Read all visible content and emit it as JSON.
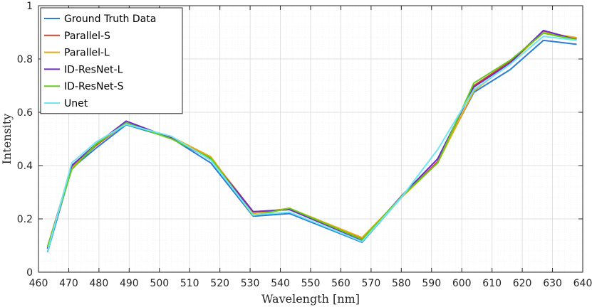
{
  "chart_data": {
    "type": "line",
    "title": "",
    "xlabel": "Wavelength [nm]",
    "ylabel": "Intensity",
    "xlim": [
      460,
      640
    ],
    "ylim": [
      0,
      1
    ],
    "xticks": [
      460,
      470,
      480,
      490,
      500,
      510,
      520,
      530,
      540,
      550,
      560,
      570,
      580,
      590,
      600,
      610,
      620,
      630,
      640
    ],
    "yticks": [
      0,
      0.2,
      0.4,
      0.6,
      0.8,
      1
    ],
    "grid": "on (major and minor)",
    "legend_position": "top-left",
    "x": [
      463,
      471,
      479,
      489,
      504,
      517,
      531,
      543,
      567,
      580,
      592,
      604,
      616,
      627,
      638
    ],
    "series": [
      {
        "name": "Ground Truth Data",
        "color": "#2b7bd8",
        "values": [
          0.075,
          0.39,
          0.465,
          0.553,
          0.503,
          0.41,
          0.21,
          0.22,
          0.112,
          0.28,
          0.415,
          0.675,
          0.76,
          0.87,
          0.855
        ]
      },
      {
        "name": "Parallel-S",
        "color": "#d9412a",
        "values": [
          0.095,
          0.395,
          0.475,
          0.56,
          0.505,
          0.43,
          0.227,
          0.235,
          0.125,
          0.28,
          0.415,
          0.7,
          0.79,
          0.905,
          0.875
        ]
      },
      {
        "name": "Parallel-L",
        "color": "#e8aa10",
        "values": [
          0.09,
          0.39,
          0.48,
          0.558,
          0.508,
          0.433,
          0.22,
          0.24,
          0.13,
          0.28,
          0.41,
          0.68,
          0.785,
          0.9,
          0.88
        ]
      },
      {
        "name": "ID-ResNet-L",
        "color": "#6a2bc7",
        "values": [
          0.088,
          0.4,
          0.48,
          0.567,
          0.503,
          0.423,
          0.227,
          0.235,
          0.12,
          0.285,
          0.425,
          0.695,
          0.785,
          0.907,
          0.872
        ]
      },
      {
        "name": "ID-ResNet-S",
        "color": "#63cc1c",
        "values": [
          0.095,
          0.385,
          0.48,
          0.56,
          0.5,
          0.428,
          0.212,
          0.24,
          0.123,
          0.283,
          0.41,
          0.71,
          0.795,
          0.897,
          0.872
        ]
      },
      {
        "name": "Unet",
        "color": "#6de8f0",
        "values": [
          0.078,
          0.41,
          0.488,
          0.555,
          0.51,
          0.42,
          0.215,
          0.225,
          0.115,
          0.28,
          0.46,
          0.685,
          0.78,
          0.885,
          0.87
        ]
      }
    ]
  }
}
